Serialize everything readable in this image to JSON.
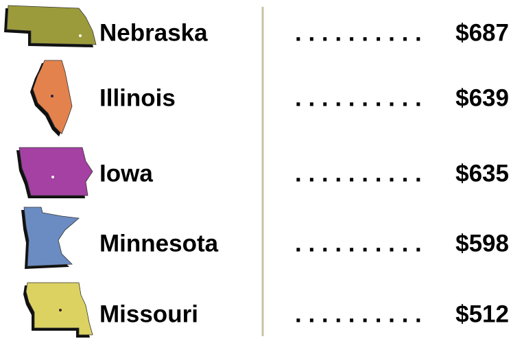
{
  "leader": ". . . . . . . . . .",
  "items": [
    {
      "name": "Nebraska",
      "value": "$687"
    },
    {
      "name": "Illinois",
      "value": "$639"
    },
    {
      "name": "Iowa",
      "value": "$635"
    },
    {
      "name": "Minnesota",
      "value": "$598"
    },
    {
      "name": "Missouri",
      "value": "$512"
    }
  ]
}
